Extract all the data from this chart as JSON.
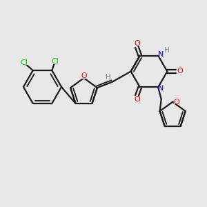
{
  "bg_color": "#e8e8e8",
  "bond_color": "#1a1a1a",
  "cl_color": "#00cc00",
  "o_color": "#ff0000",
  "n_color": "#0000cc",
  "h_color": "#708090",
  "line_width": 1.6,
  "figsize": [
    3.0,
    3.0
  ],
  "dpi": 100,
  "xlim": [
    0,
    10
  ],
  "ylim": [
    0,
    10
  ]
}
